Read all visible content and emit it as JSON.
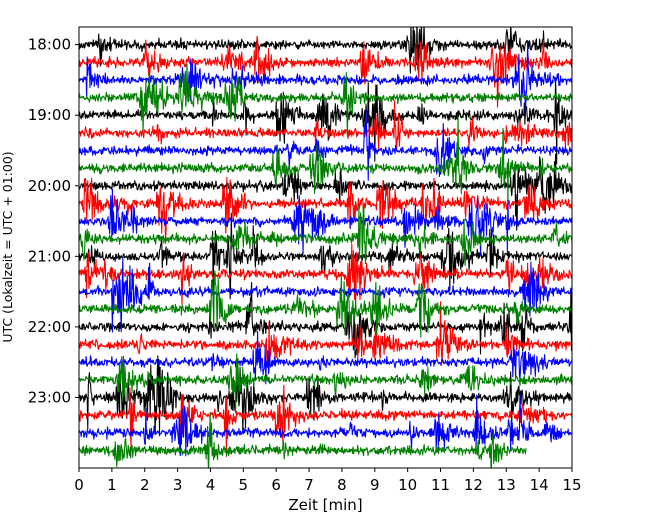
{
  "chart_data": {
    "type": "line",
    "title": "",
    "xlabel": "Zeit  [min]",
    "ylabel": "UTC (Lokalzeit = UTC + 01:00)",
    "xlim": [
      0,
      15
    ],
    "x_ticks": [
      0,
      1,
      2,
      3,
      4,
      5,
      6,
      7,
      8,
      9,
      10,
      11,
      12,
      13,
      14,
      15
    ],
    "x_tick_labels": [
      "0",
      "1",
      "2",
      "3",
      "4",
      "5",
      "6",
      "7",
      "8",
      "9",
      "10",
      "11",
      "12",
      "13",
      "14",
      "15"
    ],
    "y_tick_labels": [
      "18:00",
      "19:00",
      "20:00",
      "21:00",
      "22:00",
      "23:00"
    ],
    "y_tick_hours": [
      18,
      19,
      20,
      21,
      22,
      23
    ],
    "ylim_hours": [
      17.75,
      24.0
    ],
    "y_inverted": true,
    "row_interval_min": 15,
    "row_start_hour": 18.0,
    "row_count": 24,
    "last_row_end_min": 13.6,
    "series": [
      {
        "color": "#000000",
        "row_offsets_min": [
          0,
          60,
          120,
          180,
          240,
          300
        ]
      },
      {
        "color": "#ff0000",
        "row_offsets_min": [
          15,
          75,
          135,
          195,
          255,
          315
        ]
      },
      {
        "color": "#0000ff",
        "row_offsets_min": [
          30,
          90,
          150,
          210,
          270,
          330
        ]
      },
      {
        "color": "#008000",
        "row_offsets_min": [
          45,
          105,
          165,
          225,
          285,
          345
        ]
      }
    ],
    "grid": false,
    "legend": "none"
  }
}
